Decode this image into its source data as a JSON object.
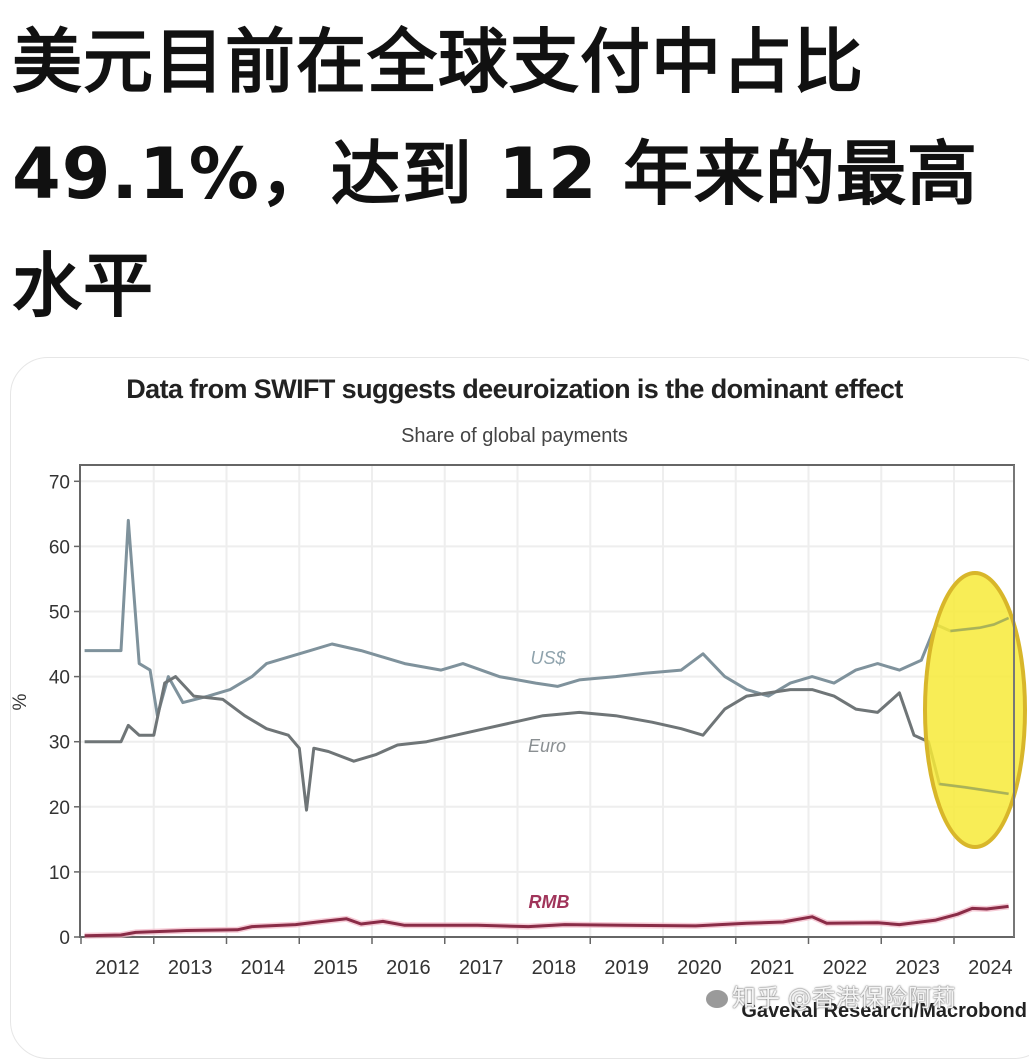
{
  "headline": {
    "lines": [
      "美元目前在全球支付中占比",
      "49.1%，达到 12 年来的最高",
      "水平"
    ]
  },
  "chart_data": {
    "type": "line",
    "title": "Data from SWIFT suggests deeuroization is the dominant effect",
    "subtitle": "Share of global payments",
    "xlabel": "",
    "ylabel": "%",
    "ylim": [
      0,
      70
    ],
    "yticks": [
      0,
      10,
      20,
      30,
      40,
      50,
      60,
      70
    ],
    "xlim": [
      2011.55,
      2024.4
    ],
    "xtick_labels": [
      "2012",
      "2013",
      "2014",
      "2015",
      "2016",
      "2017",
      "2018",
      "2019",
      "2020",
      "2021",
      "2022",
      "2023",
      "2024"
    ],
    "grid": true,
    "legend_position": "inline labels",
    "annotations": [
      {
        "type": "ellipse",
        "color": "#f7e93a",
        "covers": "2023.5-2024.4",
        "note": "yellow highlight over latest USD and Euro values"
      }
    ],
    "source": "Gavekal Research/Macrobond",
    "series": [
      {
        "name": "US$",
        "label": "US$",
        "color": "#7f929c",
        "x": [
          2011.6,
          2012.1,
          2012.2,
          2012.35,
          2012.5,
          2012.6,
          2012.75,
          2012.95,
          2013.3,
          2013.6,
          2013.9,
          2014.1,
          2014.4,
          2014.7,
          2015.0,
          2015.4,
          2015.7,
          2016.0,
          2016.5,
          2016.8,
          2017.3,
          2017.8,
          2018.1,
          2018.4,
          2018.9,
          2019.3,
          2019.8,
          2020.1,
          2020.4,
          2020.7,
          2021.0,
          2021.3,
          2021.6,
          2021.9,
          2022.2,
          2022.5,
          2022.8,
          2023.1,
          2023.3,
          2023.5,
          2023.9,
          2024.1,
          2024.3
        ],
        "values": [
          44,
          44,
          64,
          42,
          41,
          34,
          40,
          36,
          37,
          38,
          40,
          42,
          43,
          44,
          45,
          44,
          43,
          42,
          41,
          42,
          40,
          39,
          38.5,
          39.5,
          40,
          40.5,
          41,
          43.5,
          40,
          38,
          37,
          39,
          40,
          39,
          41,
          42,
          41,
          42.5,
          48,
          47,
          47.5,
          48,
          49
        ]
      },
      {
        "name": "Euro",
        "label": "Euro",
        "color": "#6f7577",
        "x": [
          2011.6,
          2012.1,
          2012.2,
          2012.35,
          2012.55,
          2012.7,
          2012.85,
          2013.1,
          2013.5,
          2013.8,
          2014.1,
          2014.4,
          2014.55,
          2014.65,
          2014.75,
          2014.95,
          2015.3,
          2015.6,
          2015.9,
          2016.3,
          2016.7,
          2017.1,
          2017.5,
          2017.9,
          2018.4,
          2018.9,
          2019.4,
          2019.8,
          2020.1,
          2020.4,
          2020.7,
          2021.0,
          2021.3,
          2021.6,
          2021.9,
          2022.2,
          2022.5,
          2022.8,
          2023.0,
          2023.2,
          2023.35,
          2023.7,
          2024.0,
          2024.3
        ],
        "values": [
          30,
          30,
          32.5,
          31,
          31,
          39,
          40,
          37,
          36.5,
          34,
          32,
          31,
          29,
          19.5,
          29,
          28.5,
          27,
          28,
          29.5,
          30,
          31,
          32,
          33,
          34,
          34.5,
          34,
          33,
          32,
          31,
          35,
          37,
          37.5,
          38,
          38,
          37,
          35,
          34.5,
          37.5,
          31,
          30,
          23.5,
          23,
          22.5,
          22
        ]
      },
      {
        "name": "RMB",
        "label": "RMB",
        "color": "#8a2c47",
        "x": [
          2011.6,
          2012.1,
          2012.3,
          2013.0,
          2013.7,
          2013.9,
          2014.5,
          2014.8,
          2015.2,
          2015.4,
          2015.7,
          2016.0,
          2017.0,
          2017.7,
          2018.2,
          2019.0,
          2020.0,
          2020.7,
          2021.2,
          2021.6,
          2021.8,
          2022.5,
          2022.8,
          2023.3,
          2023.6,
          2023.8,
          2024.0,
          2024.3
        ],
        "values": [
          0.2,
          0.3,
          0.7,
          1.0,
          1.1,
          1.6,
          1.9,
          2.3,
          2.8,
          2.0,
          2.4,
          1.8,
          1.8,
          1.6,
          1.9,
          1.8,
          1.7,
          2.1,
          2.3,
          3.1,
          2.1,
          2.2,
          1.9,
          2.6,
          3.5,
          4.4,
          4.3,
          4.7
        ]
      }
    ]
  },
  "watermark": {
    "text": "知乎 @香港保险阿莉"
  }
}
